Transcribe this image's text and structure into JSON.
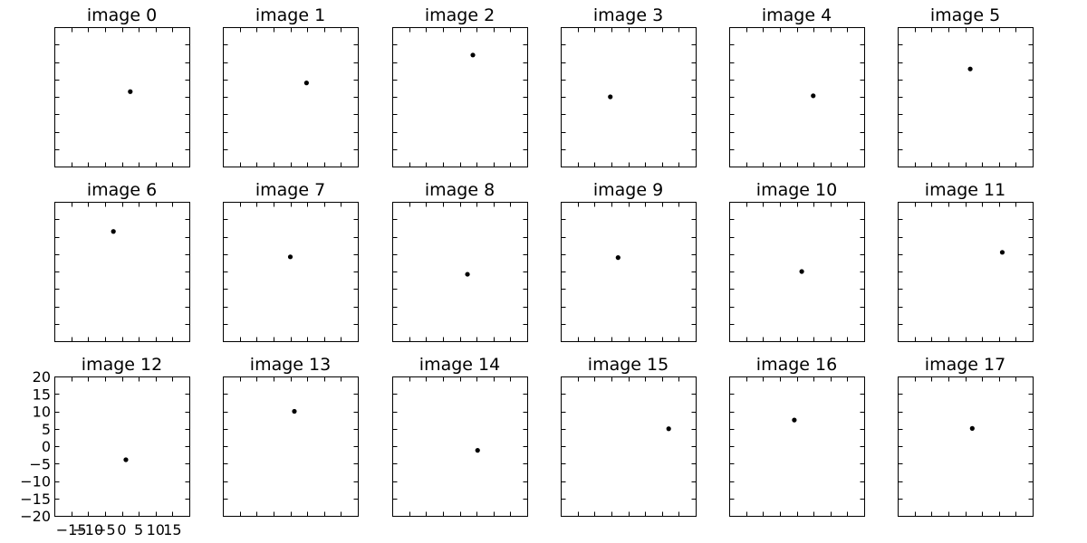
{
  "chart_data": {
    "type": "scatter",
    "layout": {
      "rows": 3,
      "cols": 6
    },
    "xlim": [
      -20,
      20
    ],
    "ylim": [
      -20,
      20
    ],
    "xticks": [
      -15,
      -10,
      -5,
      0,
      5,
      10,
      15
    ],
    "xtick_labels": [
      "−15",
      "−10",
      "−5",
      "0",
      "5",
      "10",
      "15"
    ],
    "yticks": [
      -20,
      -15,
      -10,
      -5,
      0,
      5,
      10,
      15,
      20
    ],
    "ytick_labels": [
      "−20",
      "−15",
      "−10",
      "−5",
      "0",
      "5",
      "10",
      "15",
      "20"
    ],
    "tick_labels_on_panel": 12,
    "grid": false,
    "point_color": "#000000",
    "panels": [
      {
        "title": "image 0",
        "x": 2.5,
        "y": 1.5
      },
      {
        "title": "image 1",
        "x": 4.8,
        "y": 4.0
      },
      {
        "title": "image 2",
        "x": 3.9,
        "y": 12.0
      },
      {
        "title": "image 3",
        "x": -5.3,
        "y": 0.0
      },
      {
        "title": "image 4",
        "x": 4.9,
        "y": 0.3
      },
      {
        "title": "image 5",
        "x": 1.5,
        "y": 8.0
      },
      {
        "title": "image 6",
        "x": -2.5,
        "y": 11.5
      },
      {
        "title": "image 7",
        "x": 0.0,
        "y": 4.2
      },
      {
        "title": "image 8",
        "x": 2.3,
        "y": -0.8
      },
      {
        "title": "image 9",
        "x": -3.0,
        "y": 4.0
      },
      {
        "title": "image 10",
        "x": 1.5,
        "y": 0.0
      },
      {
        "title": "image 11",
        "x": 11.0,
        "y": 5.5
      },
      {
        "title": "image 12",
        "x": 1.2,
        "y": -3.9
      },
      {
        "title": "image 13",
        "x": 1.2,
        "y": 10.0
      },
      {
        "title": "image 14",
        "x": 5.3,
        "y": -1.2
      },
      {
        "title": "image 15",
        "x": 12.0,
        "y": 5.0
      },
      {
        "title": "image 16",
        "x": -0.7,
        "y": 7.5
      },
      {
        "title": "image 17",
        "x": 2.1,
        "y": 5.1
      }
    ]
  }
}
